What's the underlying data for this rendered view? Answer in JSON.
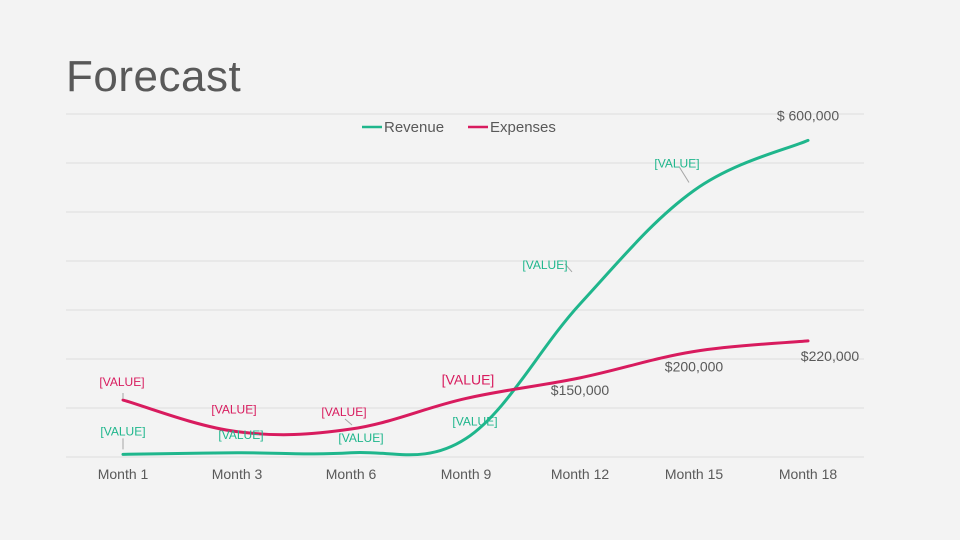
{
  "slide": {
    "title": "Forecast"
  },
  "chart_data": {
    "type": "line",
    "categories": [
      "Month 1",
      "Month 3",
      "Month 6",
      "Month 9",
      "Month 12",
      "Month 15",
      "Month 18"
    ],
    "ylim": [
      0,
      650000
    ],
    "grid": true,
    "legend_position": "top",
    "series": [
      {
        "name": "Revenue",
        "color": "#1fb68c",
        "values": [
          5000,
          8000,
          8000,
          35000,
          290000,
          505000,
          600000
        ],
        "labels": [
          "[VALUE]",
          "[VALUE]",
          "[VALUE]",
          "[VALUE]",
          "[VALUE]",
          "[VALUE]",
          "$ 600,000"
        ]
      },
      {
        "name": "Expenses",
        "color": "#d81b5e",
        "values": [
          108000,
          48000,
          53000,
          111000,
          150000,
          200000,
          220000
        ],
        "labels": [
          "[VALUE]",
          "[VALUE]",
          "[VALUE]",
          "[VALUE]",
          "$150,000",
          "$200,000",
          "$220,000"
        ]
      }
    ]
  }
}
